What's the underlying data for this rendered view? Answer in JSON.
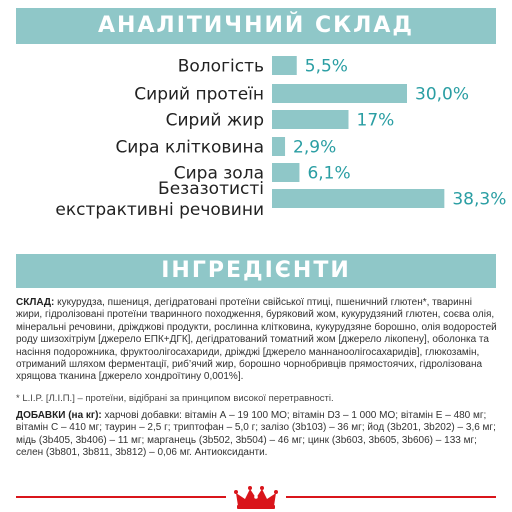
{
  "banners": {
    "analysis": "АНАЛІТИЧНИЙ СКЛАД",
    "ingredients": "ІНГРЕДІЄНТИ"
  },
  "chart_data": {
    "type": "bar",
    "orientation": "horizontal",
    "title": "АНАЛІТИЧНИЙ СКЛАД",
    "categories": [
      [
        "Вологість"
      ],
      [
        "Сирий протеїн"
      ],
      [
        "Сирий жир"
      ],
      [
        "Сира клітковина"
      ],
      [
        "Сира зола"
      ],
      [
        "Безазотисті",
        "екстрактивні речовини"
      ]
    ],
    "values": [
      5.5,
      30.0,
      17,
      2.9,
      6.1,
      38.3
    ],
    "value_labels": [
      "5,5%",
      "30,0%",
      "17%",
      "2,9%",
      "6,1%",
      "38,3%"
    ],
    "xlim": [
      0,
      40
    ],
    "grid": false,
    "legend": "none",
    "bar_color": "#8fc7c8",
    "value_color": "#2a9ea3"
  },
  "composition": {
    "label": "СКЛАД:",
    "text": " кукурудза, пшениця, дегідратовані протеїни свійської птиці, пшеничний глютен*, тваринні жири, гідролізовані протеїни тваринного походження, буряковий жом, кукурудзяний глютен, соєва олія, мінеральні речовини, дріжджові продукти, рослинна клітковина, кукурудзяне борошно, олія водоростей роду шизохітріум [джерело ЕПК+ДГК], дегідратований томатний жом [джерело лікопену], оболонка та насіння подорожника, фруктоолігосахариди, дріжджі [джерело маннаноолігосахаридів], глюкозамін, отриманий шляхом ферментації, риб’ячий жир, борошно чорнобривців прямостоячих, гідролізована хрящова тканина [джерело хондроїтину 0,001%]."
  },
  "lip_note": "* L.I.P. [Л.І.П.] – протеїни, відібрані за принципом високої перетравності.",
  "additives": {
    "label": "ДОБАВКИ (на кг):",
    "text": " харчові добавки: вітамін А – 19 100 МО; вітамін D3 – 1 000 МО; вітамін Е – 480 мг; вітамін С – 410 мг; таурин – 2,5 г; триптофан – 5,0 г; залізо (3b103) – 36 мг; йод (3b201, 3b202) – 3,6 мг; мідь (3b405, 3b406) – 11 мг; марганець (3b502, 3b504) – 46 мг; цинк (3b603, 3b605, 3b606) – 133 мг; селен (3b801, 3b811, 3b812) – 0,06 мг. Антиоксиданти."
  },
  "footer": {
    "brand_color": "#d9151b",
    "brand_icon": "crown-icon"
  }
}
